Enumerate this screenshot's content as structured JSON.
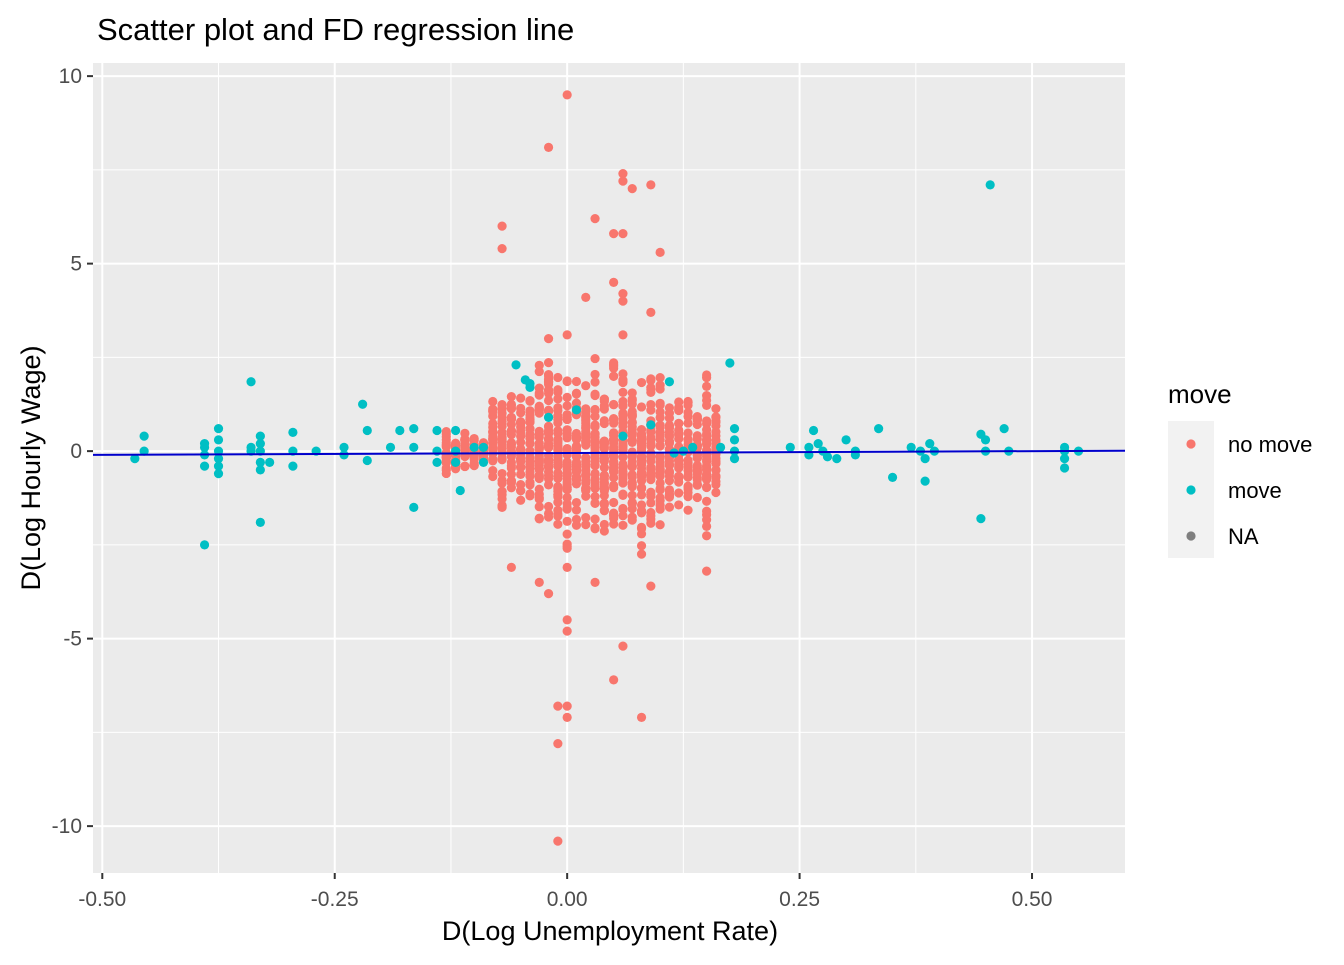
{
  "chart_data": {
    "type": "scatter",
    "title": "Scatter plot and FD regression line",
    "xlabel": "D(Log Unemployment Rate)",
    "ylabel": "D(Log Hourly Wage)",
    "xlim": [
      -0.51,
      0.6
    ],
    "ylim": [
      -11.25,
      10.35
    ],
    "x_ticks": [
      -0.5,
      -0.25,
      0.0,
      0.25,
      0.5
    ],
    "x_tick_labels": [
      "-0.50",
      "-0.25",
      "0.00",
      "0.25",
      "0.50"
    ],
    "y_ticks": [
      -10,
      -5,
      0,
      5,
      10
    ],
    "y_tick_labels": [
      "-10",
      "-5",
      "0",
      "5",
      "10"
    ],
    "grid": true,
    "legend": {
      "title": "move",
      "position": "right",
      "entries": [
        {
          "label": "no move",
          "color": "#F8766D"
        },
        {
          "label": "move",
          "color": "#00BFC4"
        },
        {
          "label": "NA",
          "color": "#7F7F7F"
        }
      ]
    },
    "regression_line": {
      "intercept": -0.05,
      "slope": 0.1,
      "color": "#0000CC"
    },
    "series": [
      {
        "name": "no move",
        "color": "#F8766D",
        "columns": [
          {
            "x": -0.13,
            "ymin": -1.0,
            "ymax": 0.7,
            "n": 24
          },
          {
            "x": -0.12,
            "ymin": -0.7,
            "ymax": 0.5,
            "n": 20
          },
          {
            "x": -0.11,
            "ymin": -0.6,
            "ymax": 0.6,
            "n": 20
          },
          {
            "x": -0.1,
            "ymin": -0.5,
            "ymax": 0.5,
            "n": 18
          },
          {
            "x": -0.09,
            "ymin": -0.4,
            "ymax": 0.4,
            "n": 18
          },
          {
            "x": -0.08,
            "ymin": -1.1,
            "ymax": 1.5,
            "n": 24
          },
          {
            "x": -0.07,
            "ymin": -1.9,
            "ymax": 1.9,
            "n": 36
          },
          {
            "x": -0.06,
            "ymin": -1.2,
            "ymax": 1.8,
            "n": 30
          },
          {
            "x": -0.05,
            "ymin": -1.5,
            "ymax": 1.6,
            "n": 30
          },
          {
            "x": -0.04,
            "ymin": -1.5,
            "ymax": 2.0,
            "n": 36
          },
          {
            "x": -0.03,
            "ymin": -2.6,
            "ymax": 2.4,
            "n": 44
          },
          {
            "x": -0.02,
            "ymin": -2.3,
            "ymax": 2.8,
            "n": 44
          },
          {
            "x": -0.01,
            "ymin": -2.6,
            "ymax": 2.6,
            "n": 44
          },
          {
            "x": 0.0,
            "ymin": -2.8,
            "ymax": 2.6,
            "n": 46
          },
          {
            "x": 0.01,
            "ymin": -2.1,
            "ymax": 2.0,
            "n": 40
          },
          {
            "x": 0.02,
            "ymin": -2.3,
            "ymax": 2.3,
            "n": 42
          },
          {
            "x": 0.03,
            "ymin": -2.6,
            "ymax": 2.7,
            "n": 44
          },
          {
            "x": 0.04,
            "ymin": -2.4,
            "ymax": 2.0,
            "n": 40
          },
          {
            "x": 0.05,
            "ymin": -2.2,
            "ymax": 2.8,
            "n": 44
          },
          {
            "x": 0.06,
            "ymin": -2.4,
            "ymax": 2.6,
            "n": 44
          },
          {
            "x": 0.07,
            "ymin": -2.6,
            "ymax": 2.0,
            "n": 40
          },
          {
            "x": 0.08,
            "ymin": -2.8,
            "ymax": 2.2,
            "n": 42
          },
          {
            "x": 0.09,
            "ymin": -2.6,
            "ymax": 2.4,
            "n": 42
          },
          {
            "x": 0.1,
            "ymin": -2.2,
            "ymax": 2.2,
            "n": 40
          },
          {
            "x": 0.11,
            "ymin": -1.9,
            "ymax": 1.6,
            "n": 34
          },
          {
            "x": 0.12,
            "ymin": -1.6,
            "ymax": 1.5,
            "n": 30
          },
          {
            "x": 0.13,
            "ymin": -2.0,
            "ymax": 1.8,
            "n": 32
          },
          {
            "x": 0.14,
            "ymin": -1.6,
            "ymax": 1.6,
            "n": 30
          },
          {
            "x": 0.15,
            "ymin": -2.6,
            "ymax": 2.5,
            "n": 40
          },
          {
            "x": 0.16,
            "ymin": -1.5,
            "ymax": 1.5,
            "n": 28
          }
        ],
        "points": [
          [
            0.0,
            9.5
          ],
          [
            -0.02,
            8.1
          ],
          [
            0.06,
            7.4
          ],
          [
            0.06,
            7.2
          ],
          [
            0.07,
            7.0
          ],
          [
            0.09,
            7.1
          ],
          [
            -0.07,
            6.0
          ],
          [
            -0.07,
            5.4
          ],
          [
            0.03,
            6.2
          ],
          [
            0.05,
            5.8
          ],
          [
            0.06,
            5.8
          ],
          [
            0.1,
            5.3
          ],
          [
            0.05,
            4.5
          ],
          [
            0.06,
            4.2
          ],
          [
            0.06,
            4.0
          ],
          [
            0.02,
            4.1
          ],
          [
            0.09,
            3.7
          ],
          [
            0.06,
            3.1
          ],
          [
            -0.02,
            3.0
          ],
          [
            0.0,
            3.1
          ],
          [
            -0.03,
            -3.5
          ],
          [
            -0.02,
            -3.8
          ],
          [
            0.0,
            -3.1
          ],
          [
            0.03,
            -3.5
          ],
          [
            -0.06,
            -3.1
          ],
          [
            0.09,
            -3.6
          ],
          [
            0.15,
            -3.2
          ],
          [
            0.0,
            -4.5
          ],
          [
            0.0,
            -4.8
          ],
          [
            0.06,
            -5.2
          ],
          [
            0.05,
            -6.1
          ],
          [
            -0.01,
            -6.8
          ],
          [
            0.0,
            -6.8
          ],
          [
            0.0,
            -7.1
          ],
          [
            0.08,
            -7.1
          ],
          [
            -0.01,
            -7.8
          ],
          [
            -0.01,
            -10.4
          ]
        ]
      },
      {
        "name": "move",
        "color": "#00BFC4",
        "points": [
          [
            -0.465,
            -0.2
          ],
          [
            -0.455,
            0.4
          ],
          [
            -0.455,
            0.0
          ],
          [
            -0.39,
            0.1
          ],
          [
            -0.39,
            -0.1
          ],
          [
            -0.39,
            -0.4
          ],
          [
            -0.39,
            -2.5
          ],
          [
            -0.39,
            0.2
          ],
          [
            -0.375,
            0.6
          ],
          [
            -0.375,
            0.3
          ],
          [
            -0.375,
            0.0
          ],
          [
            -0.375,
            -0.2
          ],
          [
            -0.375,
            -0.4
          ],
          [
            -0.375,
            -0.6
          ],
          [
            -0.34,
            1.85
          ],
          [
            -0.34,
            0.1
          ],
          [
            -0.34,
            0.0
          ],
          [
            -0.33,
            0.4
          ],
          [
            -0.33,
            0.2
          ],
          [
            -0.33,
            0.0
          ],
          [
            -0.33,
            -0.3
          ],
          [
            -0.33,
            -0.5
          ],
          [
            -0.33,
            -1.9
          ],
          [
            -0.32,
            -0.3
          ],
          [
            -0.295,
            0.5
          ],
          [
            -0.295,
            0.0
          ],
          [
            -0.295,
            -0.4
          ],
          [
            -0.27,
            0.0
          ],
          [
            -0.24,
            0.1
          ],
          [
            -0.24,
            -0.1
          ],
          [
            -0.22,
            1.25
          ],
          [
            -0.215,
            0.55
          ],
          [
            -0.215,
            -0.25
          ],
          [
            -0.19,
            0.1
          ],
          [
            -0.18,
            0.55
          ],
          [
            -0.165,
            0.6
          ],
          [
            -0.165,
            0.1
          ],
          [
            -0.165,
            -1.5
          ],
          [
            -0.14,
            0.55
          ],
          [
            -0.14,
            0.0
          ],
          [
            -0.14,
            -0.3
          ],
          [
            -0.12,
            0.55
          ],
          [
            -0.12,
            0.0
          ],
          [
            -0.12,
            -0.3
          ],
          [
            -0.1,
            0.1
          ],
          [
            -0.09,
            0.1
          ],
          [
            -0.09,
            -0.3
          ],
          [
            -0.115,
            -1.05
          ],
          [
            -0.055,
            2.3
          ],
          [
            -0.045,
            1.9
          ],
          [
            -0.04,
            1.8
          ],
          [
            -0.04,
            1.7
          ],
          [
            -0.02,
            0.9
          ],
          [
            0.01,
            1.1
          ],
          [
            0.06,
            0.4
          ],
          [
            0.09,
            0.7
          ],
          [
            0.11,
            1.85
          ],
          [
            0.115,
            -0.05
          ],
          [
            0.125,
            0.0
          ],
          [
            0.135,
            0.1
          ],
          [
            0.165,
            0.1
          ],
          [
            0.175,
            2.35
          ],
          [
            0.18,
            0.6
          ],
          [
            0.18,
            0.3
          ],
          [
            0.18,
            0.0
          ],
          [
            0.18,
            -0.2
          ],
          [
            0.24,
            0.1
          ],
          [
            0.26,
            0.1
          ],
          [
            0.26,
            -0.1
          ],
          [
            0.265,
            0.55
          ],
          [
            0.27,
            0.2
          ],
          [
            0.275,
            0.0
          ],
          [
            0.28,
            -0.15
          ],
          [
            0.29,
            -0.2
          ],
          [
            0.3,
            0.3
          ],
          [
            0.31,
            0.0
          ],
          [
            0.31,
            -0.1
          ],
          [
            0.335,
            0.6
          ],
          [
            0.35,
            -0.7
          ],
          [
            0.37,
            0.1
          ],
          [
            0.38,
            0.0
          ],
          [
            0.385,
            -0.2
          ],
          [
            0.385,
            -0.8
          ],
          [
            0.39,
            0.2
          ],
          [
            0.395,
            0.0
          ],
          [
            0.445,
            0.45
          ],
          [
            0.445,
            -1.8
          ],
          [
            0.45,
            0.3
          ],
          [
            0.45,
            0.0
          ],
          [
            0.455,
            7.1
          ],
          [
            0.47,
            0.6
          ],
          [
            0.475,
            0.0
          ],
          [
            0.535,
            0.1
          ],
          [
            0.535,
            0.0
          ],
          [
            0.535,
            -0.2
          ],
          [
            0.535,
            -0.45
          ],
          [
            0.55,
            0.0
          ]
        ]
      }
    ]
  }
}
